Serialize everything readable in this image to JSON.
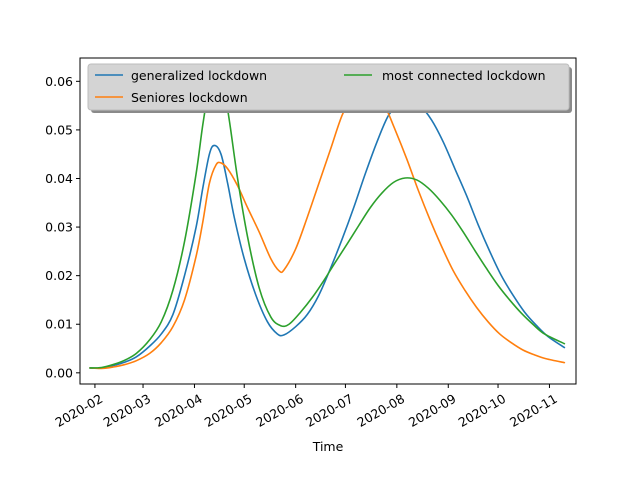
{
  "chart_data": {
    "type": "line",
    "xlabel": "Time",
    "ylabel": "",
    "title": "",
    "xlim": [
      "2020-01-23",
      "2020-11-17"
    ],
    "ylim": [
      -0.0023,
      0.0648
    ],
    "y_ticks": [
      0.0,
      0.01,
      0.02,
      0.03,
      0.04,
      0.05,
      0.06
    ],
    "y_tick_labels": [
      "0.00",
      "0.01",
      "0.02",
      "0.03",
      "0.04",
      "0.05",
      "0.06"
    ],
    "x_ticks": [
      "2020-02-01",
      "2020-03-01",
      "2020-04-01",
      "2020-05-01",
      "2020-06-01",
      "2020-07-01",
      "2020-08-01",
      "2020-09-01",
      "2020-10-01",
      "2020-11-01"
    ],
    "x_tick_labels": [
      "2020-02",
      "2020-03",
      "2020-04",
      "2020-05",
      "2020-06",
      "2020-07",
      "2020-08",
      "2020-09",
      "2020-10",
      "2020-11"
    ],
    "grid": false,
    "legend": {
      "placement": "top",
      "columns": 2
    },
    "series": [
      {
        "name": "generalized lockdown",
        "color": "#1f77b4",
        "points": [
          [
            "2020-01-29",
            0.001
          ],
          [
            "2020-02-05",
            0.001
          ],
          [
            "2020-02-12",
            0.0015
          ],
          [
            "2020-02-19",
            0.0022
          ],
          [
            "2020-02-26",
            0.0033
          ],
          [
            "2020-03-05",
            0.0055
          ],
          [
            "2020-03-12",
            0.008
          ],
          [
            "2020-03-19",
            0.012
          ],
          [
            "2020-03-26",
            0.02
          ],
          [
            "2020-04-02",
            0.03
          ],
          [
            "2020-04-06",
            0.038
          ],
          [
            "2020-04-10",
            0.045
          ],
          [
            "2020-04-13",
            0.0468
          ],
          [
            "2020-04-17",
            0.045
          ],
          [
            "2020-04-21",
            0.039
          ],
          [
            "2020-04-25",
            0.032
          ],
          [
            "2020-05-01",
            0.0235
          ],
          [
            "2020-05-08",
            0.016
          ],
          [
            "2020-05-15",
            0.0105
          ],
          [
            "2020-05-21",
            0.008
          ],
          [
            "2020-05-25",
            0.0078
          ],
          [
            "2020-06-01",
            0.0095
          ],
          [
            "2020-06-08",
            0.012
          ],
          [
            "2020-06-15",
            0.016
          ],
          [
            "2020-06-22",
            0.0215
          ],
          [
            "2020-06-29",
            0.0275
          ],
          [
            "2020-07-06",
            0.034
          ],
          [
            "2020-07-13",
            0.041
          ],
          [
            "2020-07-20",
            0.0475
          ],
          [
            "2020-07-27",
            0.053
          ],
          [
            "2020-08-03",
            0.0555
          ],
          [
            "2020-08-08",
            0.0561
          ],
          [
            "2020-08-15",
            0.055
          ],
          [
            "2020-08-22",
            0.052
          ],
          [
            "2020-08-29",
            0.0475
          ],
          [
            "2020-09-05",
            0.042
          ],
          [
            "2020-09-12",
            0.0365
          ],
          [
            "2020-09-19",
            0.0305
          ],
          [
            "2020-09-26",
            0.025
          ],
          [
            "2020-10-03",
            0.02
          ],
          [
            "2020-10-10",
            0.016
          ],
          [
            "2020-10-17",
            0.0125
          ],
          [
            "2020-10-24",
            0.0098
          ],
          [
            "2020-10-31",
            0.0075
          ],
          [
            "2020-11-10",
            0.0052
          ]
        ]
      },
      {
        "name": "Seniores lockdown",
        "color": "#ff7f0e",
        "points": [
          [
            "2020-01-29",
            0.001
          ],
          [
            "2020-02-05",
            0.0009
          ],
          [
            "2020-02-12",
            0.0012
          ],
          [
            "2020-02-19",
            0.0017
          ],
          [
            "2020-02-26",
            0.0025
          ],
          [
            "2020-03-05",
            0.004
          ],
          [
            "2020-03-12",
            0.0062
          ],
          [
            "2020-03-19",
            0.0095
          ],
          [
            "2020-03-26",
            0.015
          ],
          [
            "2020-04-02",
            0.024
          ],
          [
            "2020-04-06",
            0.031
          ],
          [
            "2020-04-10",
            0.039
          ],
          [
            "2020-04-14",
            0.0428
          ],
          [
            "2020-04-17",
            0.0432
          ],
          [
            "2020-04-21",
            0.042
          ],
          [
            "2020-04-27",
            0.0385
          ],
          [
            "2020-05-03",
            0.034
          ],
          [
            "2020-05-10",
            0.029
          ],
          [
            "2020-05-17",
            0.0235
          ],
          [
            "2020-05-22",
            0.021
          ],
          [
            "2020-05-25",
            0.0212
          ],
          [
            "2020-06-01",
            0.0255
          ],
          [
            "2020-06-08",
            0.032
          ],
          [
            "2020-06-15",
            0.039
          ],
          [
            "2020-06-22",
            0.046
          ],
          [
            "2020-06-29",
            0.053
          ],
          [
            "2020-07-06",
            0.0575
          ],
          [
            "2020-07-12",
            0.059
          ],
          [
            "2020-07-17",
            0.0585
          ],
          [
            "2020-07-24",
            0.0555
          ],
          [
            "2020-07-31",
            0.05
          ],
          [
            "2020-08-07",
            0.044
          ],
          [
            "2020-08-14",
            0.0375
          ],
          [
            "2020-08-21",
            0.0315
          ],
          [
            "2020-08-28",
            0.026
          ],
          [
            "2020-09-04",
            0.021
          ],
          [
            "2020-09-11",
            0.017
          ],
          [
            "2020-09-18",
            0.0135
          ],
          [
            "2020-09-25",
            0.0105
          ],
          [
            "2020-10-02",
            0.008
          ],
          [
            "2020-10-09",
            0.0062
          ],
          [
            "2020-10-16",
            0.0047
          ],
          [
            "2020-10-23",
            0.0037
          ],
          [
            "2020-10-30",
            0.0029
          ],
          [
            "2020-11-10",
            0.0021
          ]
        ]
      },
      {
        "name": "most connected lockdown",
        "color": "#2ca02c",
        "points": [
          [
            "2020-01-29",
            0.001
          ],
          [
            "2020-02-05",
            0.0011
          ],
          [
            "2020-02-12",
            0.0017
          ],
          [
            "2020-02-19",
            0.0026
          ],
          [
            "2020-02-26",
            0.004
          ],
          [
            "2020-03-05",
            0.0068
          ],
          [
            "2020-03-12",
            0.0105
          ],
          [
            "2020-03-19",
            0.017
          ],
          [
            "2020-03-26",
            0.027
          ],
          [
            "2020-04-02",
            0.041
          ],
          [
            "2020-04-06",
            0.051
          ],
          [
            "2020-04-10",
            0.059
          ],
          [
            "2020-04-14",
            0.0625
          ],
          [
            "2020-04-18",
            0.06
          ],
          [
            "2020-04-22",
            0.052
          ],
          [
            "2020-04-27",
            0.04
          ],
          [
            "2020-05-03",
            0.028
          ],
          [
            "2020-05-10",
            0.0175
          ],
          [
            "2020-05-17",
            0.0115
          ],
          [
            "2020-05-23",
            0.0097
          ],
          [
            "2020-05-28",
            0.01
          ],
          [
            "2020-06-04",
            0.0125
          ],
          [
            "2020-06-11",
            0.0155
          ],
          [
            "2020-06-18",
            0.019
          ],
          [
            "2020-06-25",
            0.0228
          ],
          [
            "2020-07-02",
            0.0265
          ],
          [
            "2020-07-09",
            0.0303
          ],
          [
            "2020-07-16",
            0.034
          ],
          [
            "2020-07-23",
            0.037
          ],
          [
            "2020-07-30",
            0.0392
          ],
          [
            "2020-08-06",
            0.0401
          ],
          [
            "2020-08-13",
            0.0397
          ],
          [
            "2020-08-20",
            0.038
          ],
          [
            "2020-08-27",
            0.0355
          ],
          [
            "2020-09-03",
            0.0325
          ],
          [
            "2020-09-10",
            0.029
          ],
          [
            "2020-09-17",
            0.0252
          ],
          [
            "2020-09-24",
            0.0215
          ],
          [
            "2020-10-01",
            0.018
          ],
          [
            "2020-10-08",
            0.015
          ],
          [
            "2020-10-15",
            0.0123
          ],
          [
            "2020-10-22",
            0.01
          ],
          [
            "2020-10-29",
            0.008
          ],
          [
            "2020-11-10",
            0.006
          ]
        ]
      }
    ]
  }
}
